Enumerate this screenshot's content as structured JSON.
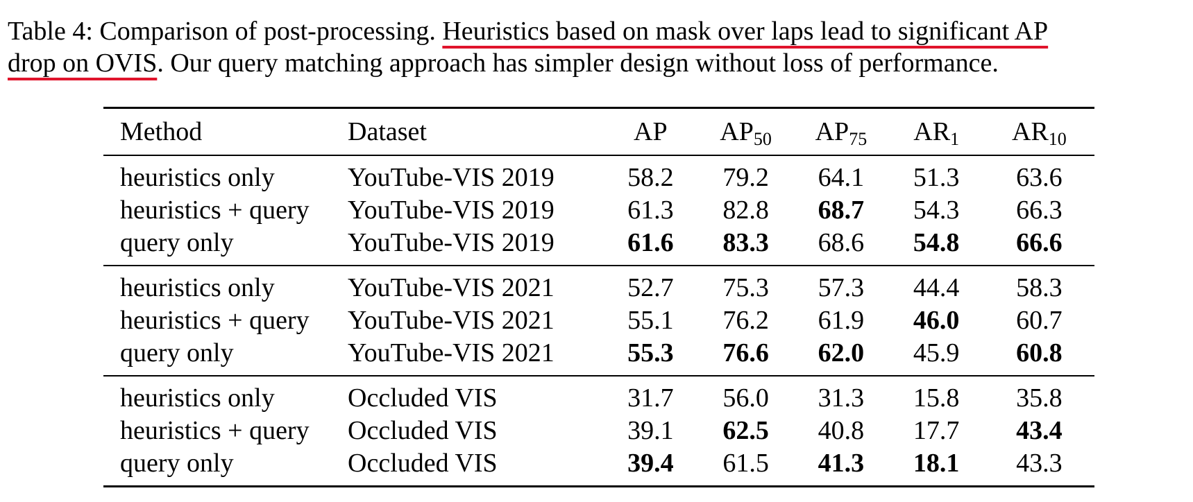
{
  "caption": {
    "prefix": "Table 4: Comparison of post-processing. ",
    "highlight_line1": "Heuristics based on mask over laps lead to significant AP",
    "highlight_line2": "drop on OVIS",
    "suffix": ". Our query matching approach has simpler design without loss of performance.",
    "highlight_color": "#e0142c"
  },
  "table": {
    "headers": {
      "method": "Method",
      "dataset": "Dataset",
      "ap": "AP",
      "ap50_base": "AP",
      "ap50_sub": "50",
      "ap75_base": "AP",
      "ap75_sub": "75",
      "ar1_base": "AR",
      "ar1_sub": "1",
      "ar10_base": "AR",
      "ar10_sub": "10"
    },
    "groups": [
      {
        "rows": [
          {
            "method": "heuristics only",
            "dataset": "YouTube-VIS 2019",
            "values": [
              "58.2",
              "79.2",
              "64.1",
              "51.3",
              "63.6"
            ],
            "bold": [
              false,
              false,
              false,
              false,
              false
            ]
          },
          {
            "method": "heuristics + query",
            "dataset": "YouTube-VIS 2019",
            "values": [
              "61.3",
              "82.8",
              "68.7",
              "54.3",
              "66.3"
            ],
            "bold": [
              false,
              false,
              true,
              false,
              false
            ]
          },
          {
            "method": "query only",
            "dataset": "YouTube-VIS 2019",
            "values": [
              "61.6",
              "83.3",
              "68.6",
              "54.8",
              "66.6"
            ],
            "bold": [
              true,
              true,
              false,
              true,
              true
            ]
          }
        ]
      },
      {
        "rows": [
          {
            "method": "heuristics only",
            "dataset": "YouTube-VIS 2021",
            "values": [
              "52.7",
              "75.3",
              "57.3",
              "44.4",
              "58.3"
            ],
            "bold": [
              false,
              false,
              false,
              false,
              false
            ]
          },
          {
            "method": "heuristics + query",
            "dataset": "YouTube-VIS 2021",
            "values": [
              "55.1",
              "76.2",
              "61.9",
              "46.0",
              "60.7"
            ],
            "bold": [
              false,
              false,
              false,
              true,
              false
            ]
          },
          {
            "method": "query only",
            "dataset": "YouTube-VIS 2021",
            "values": [
              "55.3",
              "76.6",
              "62.0",
              "45.9",
              "60.8"
            ],
            "bold": [
              true,
              true,
              true,
              false,
              true
            ]
          }
        ]
      },
      {
        "rows": [
          {
            "method": "heuristics only",
            "dataset": "Occluded VIS",
            "values": [
              "31.7",
              "56.0",
              "31.3",
              "15.8",
              "35.8"
            ],
            "bold": [
              false,
              false,
              false,
              false,
              false
            ]
          },
          {
            "method": "heuristics + query",
            "dataset": "Occluded VIS",
            "values": [
              "39.1",
              "62.5",
              "40.8",
              "17.7",
              "43.4"
            ],
            "bold": [
              false,
              true,
              false,
              false,
              true
            ]
          },
          {
            "method": "query only",
            "dataset": "Occluded VIS",
            "values": [
              "39.4",
              "61.5",
              "41.3",
              "18.1",
              "43.3"
            ],
            "bold": [
              true,
              false,
              true,
              true,
              false
            ]
          }
        ]
      }
    ]
  }
}
